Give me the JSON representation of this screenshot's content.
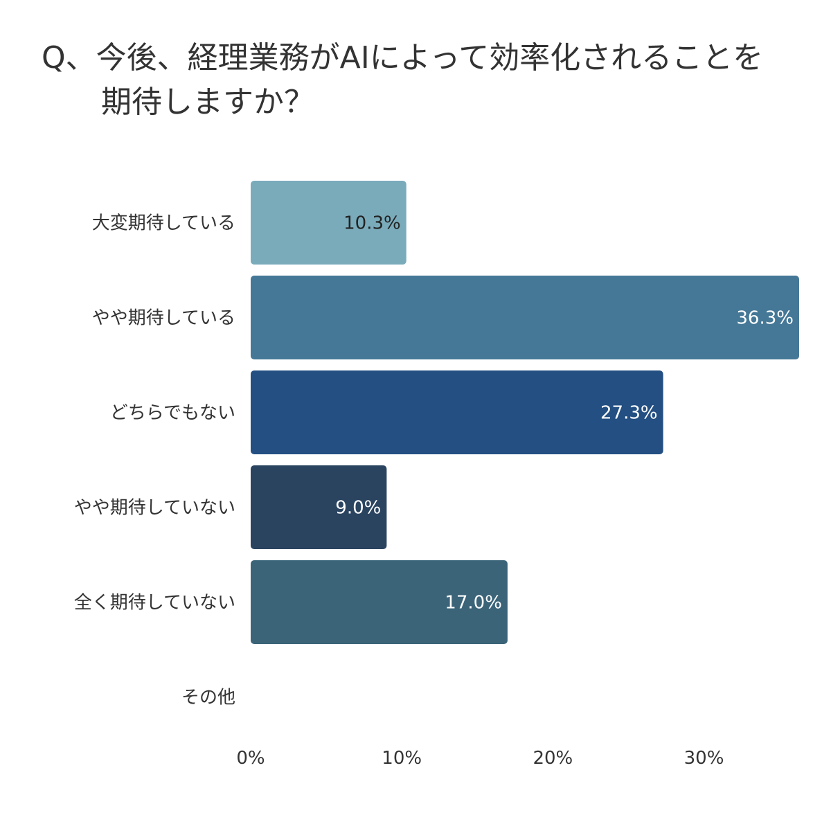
{
  "title": {
    "line1": "Q、今後、経理業務がAIによって効率化されることを",
    "line2": "期待しますか？"
  },
  "chart_data": {
    "type": "bar",
    "orientation": "horizontal",
    "categories": [
      "大変期待している",
      "やや期待している",
      "どちらでもない",
      "やや期待していない",
      "全く期待していない",
      "その他"
    ],
    "values": [
      10.3,
      36.3,
      27.3,
      9.0,
      17.0,
      0
    ],
    "data_labels": [
      "10.3%",
      "36.3%",
      "27.3%",
      "9.0%",
      "17.0%",
      ""
    ],
    "colors": [
      "#7aabbb",
      "#457897",
      "#234f82",
      "#2a4460",
      "#3b6479",
      "#cccccc"
    ],
    "label_colors": [
      "#222222",
      "#ffffff",
      "#ffffff",
      "#ffffff",
      "#ffffff",
      "#ffffff"
    ],
    "x_ticks": [
      "0%",
      "10%",
      "20%",
      "30%"
    ],
    "x_tick_values": [
      0,
      10,
      20,
      30
    ],
    "xlim": [
      0,
      36.3
    ],
    "grid": false,
    "legend": "none"
  }
}
